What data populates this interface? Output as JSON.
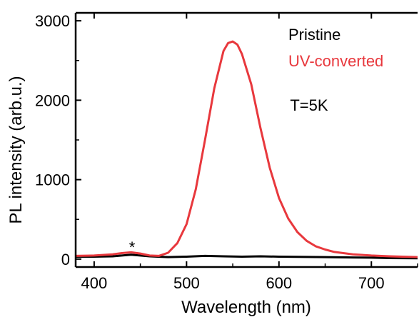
{
  "chart_data": {
    "type": "line",
    "xlabel": "Wavelength (nm)",
    "ylabel": "PL intensity (arb.u.)",
    "xlim": [
      380,
      750
    ],
    "ylim": [
      -100,
      3100
    ],
    "xticks": [
      400,
      500,
      600,
      700
    ],
    "yticks": [
      0,
      1000,
      2000,
      3000
    ],
    "xtick_labels": [
      "400",
      "500",
      "600",
      "700"
    ],
    "ytick_labels": [
      "0",
      "1000",
      "2000",
      "3000"
    ],
    "grid": false,
    "legend_position": "top-right",
    "series": [
      {
        "name": "Pristine",
        "color": "#000000",
        "x": [
          380,
          400,
          420,
          430,
          440,
          450,
          460,
          480,
          500,
          520,
          540,
          560,
          580,
          600,
          620,
          650,
          680,
          700,
          720,
          750
        ],
        "y": [
          30,
          30,
          35,
          45,
          55,
          45,
          35,
          25,
          30,
          40,
          35,
          30,
          35,
          30,
          28,
          25,
          20,
          18,
          12,
          10
        ]
      },
      {
        "name": "UV-converted",
        "color": "#e8383d",
        "x": [
          380,
          400,
          420,
          430,
          440,
          450,
          460,
          470,
          480,
          490,
          500,
          510,
          520,
          530,
          540,
          545,
          550,
          555,
          560,
          570,
          580,
          590,
          600,
          610,
          620,
          630,
          640,
          650,
          660,
          680,
          700,
          720,
          750
        ],
        "y": [
          40,
          45,
          60,
          75,
          85,
          70,
          45,
          40,
          80,
          200,
          440,
          880,
          1500,
          2150,
          2620,
          2720,
          2740,
          2700,
          2580,
          2200,
          1650,
          1150,
          770,
          510,
          340,
          230,
          160,
          120,
          90,
          60,
          45,
          35,
          25
        ]
      }
    ],
    "annotations": [
      {
        "text": "*",
        "x": 441,
        "y": 170
      },
      {
        "text": "T=5K",
        "x": 612,
        "y": 1870
      }
    ]
  }
}
